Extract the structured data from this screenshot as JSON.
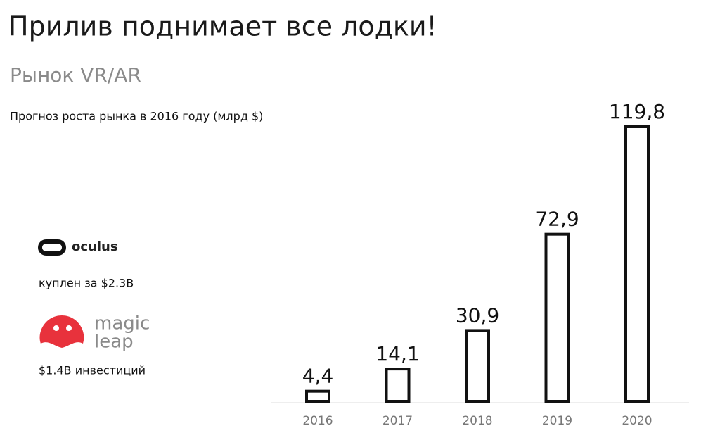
{
  "slide": {
    "title": "Прилив поднимает все лодки!",
    "subtitle": "Рынок VR/AR"
  },
  "companies": [
    {
      "logo": "oculus",
      "caption": "куплен за $2.3B"
    },
    {
      "logo": [
        "magic",
        "leap"
      ],
      "caption": "$1.4B инвестиций"
    }
  ],
  "chart_data": {
    "type": "bar",
    "title": "Прогноз роста рынка в 2016 году (млрд $)",
    "categories": [
      "2016",
      "2017",
      "2018",
      "2019",
      "2020"
    ],
    "values": [
      4.4,
      14.1,
      30.9,
      72.9,
      119.8
    ],
    "value_labels": [
      "4,4",
      "14,1",
      "30,9",
      "72,9",
      "119,8"
    ],
    "color": "#111111"
  }
}
